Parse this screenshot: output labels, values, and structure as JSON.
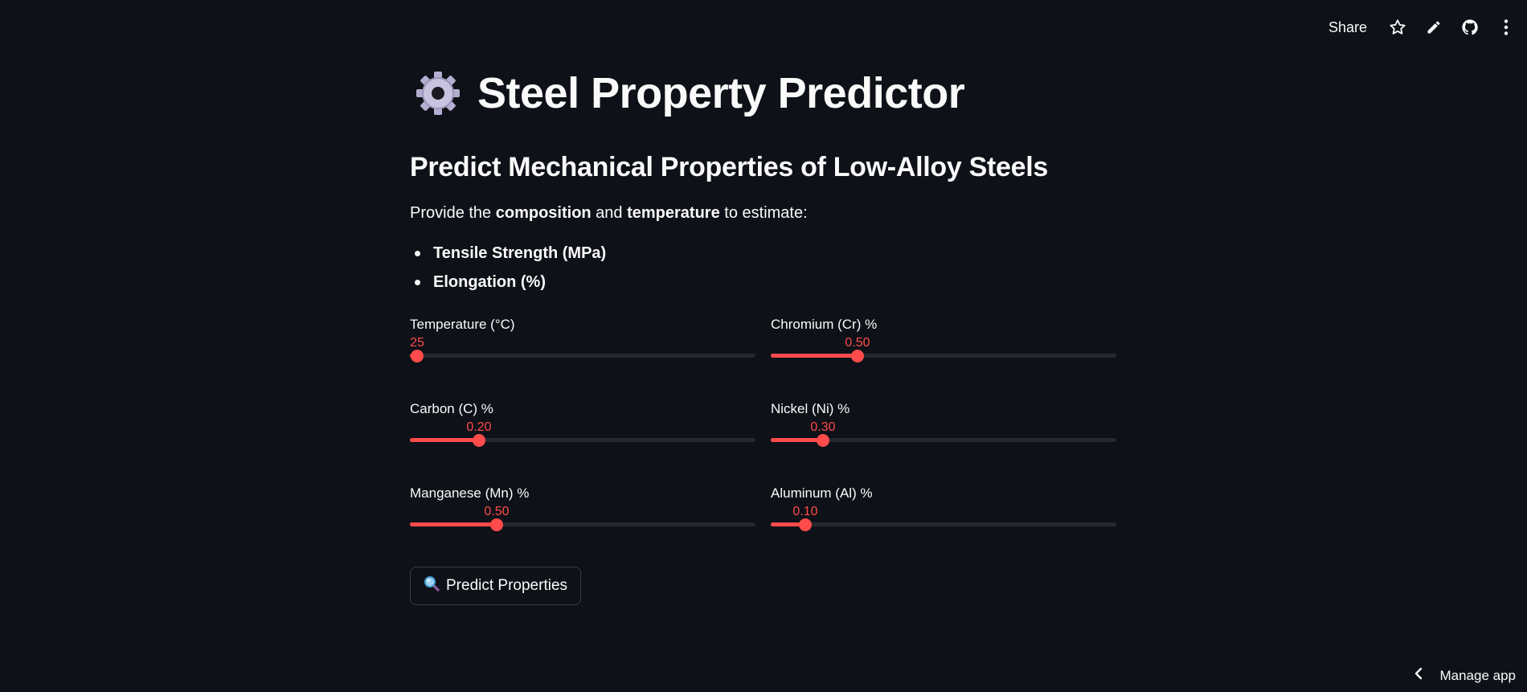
{
  "header": {
    "share_label": "Share",
    "icons": [
      "star-icon",
      "edit-icon",
      "github-icon",
      "more-icon"
    ]
  },
  "page": {
    "title": "Steel Property Predictor",
    "title_icon": "gear-icon",
    "subtitle": "Predict Mechanical Properties of Low-Alloy Steels",
    "intro": {
      "prefix": "Provide the ",
      "bold1": "composition",
      "middle": " and ",
      "bold2": "temperature",
      "suffix": " to estimate:"
    },
    "bullets": [
      "Tensile Strength (MPa)",
      "Elongation (%)"
    ]
  },
  "sliders": [
    {
      "label": "Temperature (°C)",
      "value": "25",
      "fraction": 0.02
    },
    {
      "label": "Chromium (Cr) %",
      "value": "0.50",
      "fraction": 0.25
    },
    {
      "label": "Carbon (C) %",
      "value": "0.20",
      "fraction": 0.2
    },
    {
      "label": "Nickel (Ni) %",
      "value": "0.30",
      "fraction": 0.15
    },
    {
      "label": "Manganese (Mn) %",
      "value": "0.50",
      "fraction": 0.25
    },
    {
      "label": "Aluminum (Al) %",
      "value": "0.10",
      "fraction": 0.1
    }
  ],
  "predict_button": {
    "label": "Predict Properties",
    "icon": "magnifier-icon"
  },
  "footer": {
    "manage_app_label": "Manage app"
  },
  "colors": {
    "accent": "#ff4b4b",
    "background": "#0e1117",
    "text": "#fafafa"
  }
}
